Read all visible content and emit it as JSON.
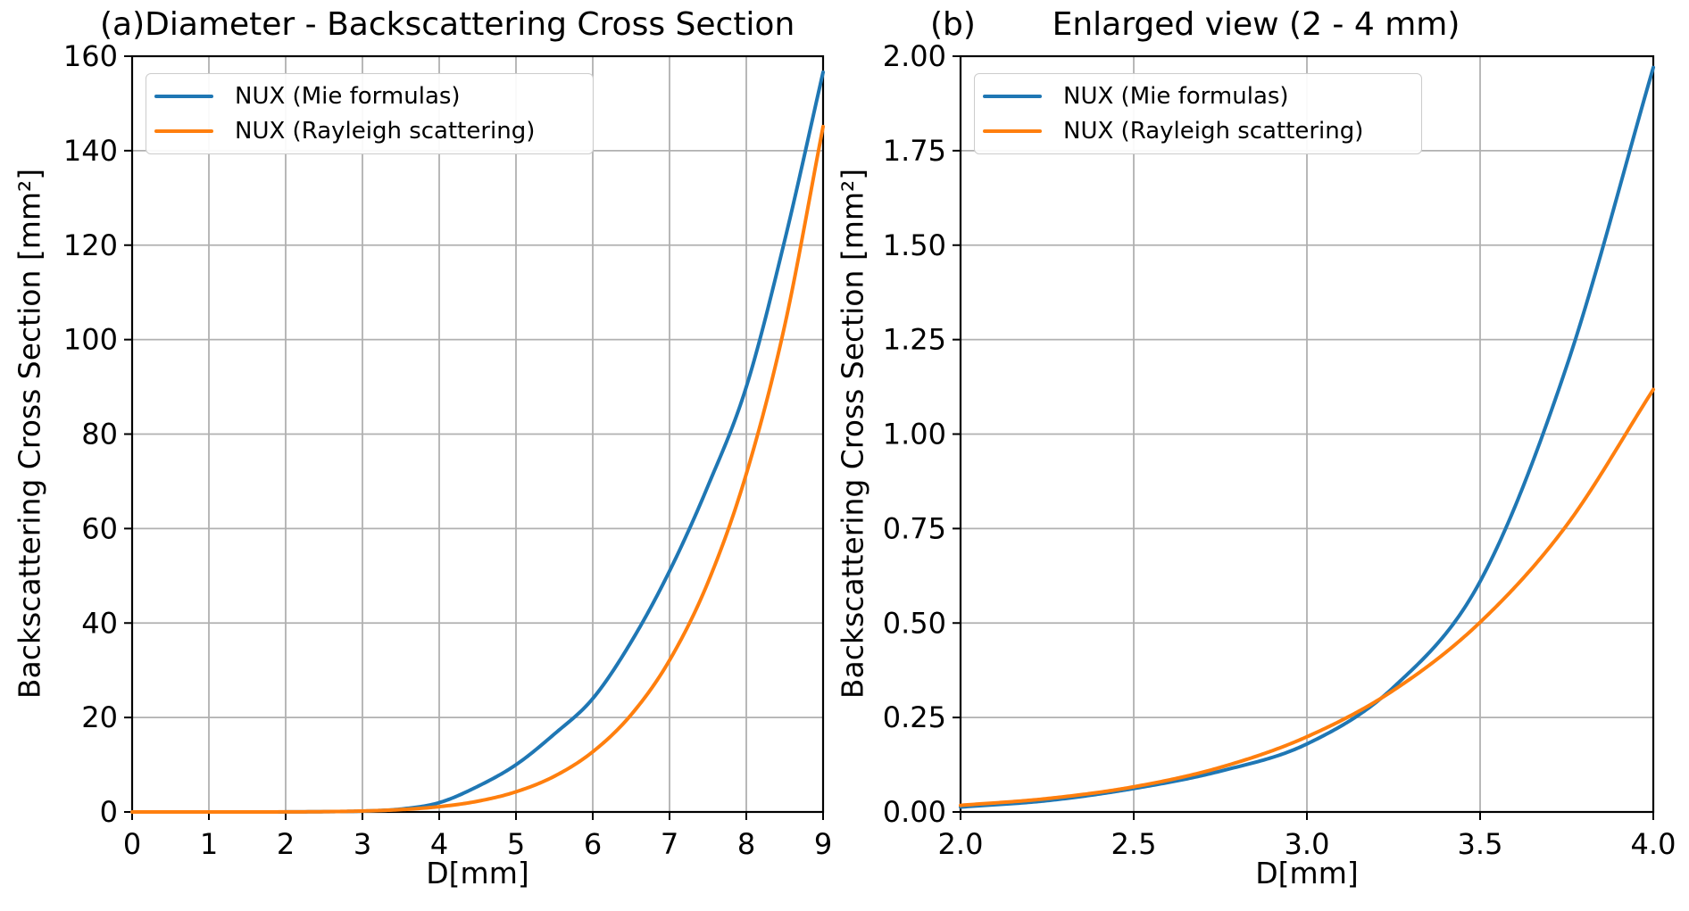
{
  "figure": {
    "background": "#ffffff",
    "grid_color": "#b0b0b0",
    "frame_color": "#000000",
    "legend_border_color": "#cccccc",
    "text_color": "#000000"
  },
  "chart_data": [
    {
      "type": "line",
      "corner_label": "(a)",
      "title": "Diameter - Backscattering Cross Section",
      "xlabel": "D[mm]",
      "ylabel": "Backscattering Cross Section [mm²]",
      "xlim": [
        0,
        9
      ],
      "ylim": [
        0,
        160
      ],
      "grid": true,
      "legend_position": "upper-left",
      "xtick_values": [
        0,
        1,
        2,
        3,
        4,
        5,
        6,
        7,
        8,
        9
      ],
      "xtick_labels": [
        "0",
        "1",
        "2",
        "3",
        "4",
        "5",
        "6",
        "7",
        "8",
        "9"
      ],
      "ytick_values": [
        0,
        20,
        40,
        60,
        80,
        100,
        120,
        140,
        160
      ],
      "ytick_labels": [
        "0",
        "20",
        "40",
        "60",
        "80",
        "100",
        "120",
        "140",
        "160"
      ],
      "series": [
        {
          "name": "NUX (Mie formulas)",
          "color": "#1f77b4",
          "x": [
            0,
            0.5,
            1,
            1.5,
            2,
            2.5,
            3,
            3.5,
            4,
            4.5,
            5,
            5.5,
            6,
            6.5,
            7,
            7.5,
            8,
            8.5,
            9
          ],
          "y": [
            0,
            1e-05,
            0.0002,
            0.002,
            0.013,
            0.062,
            0.18,
            0.61,
            1.97,
            5.4,
            10.0,
            16.5,
            24.0,
            36.0,
            51.0,
            69.0,
            90.0,
            121.0,
            156.6
          ]
        },
        {
          "name": "NUX (Rayleigh scattering)",
          "color": "#ff7f0e",
          "x": [
            0,
            0.5,
            1,
            1.5,
            2,
            2.5,
            3,
            3.5,
            4,
            4.5,
            5,
            5.5,
            6,
            6.5,
            7,
            7.5,
            8,
            8.5,
            9
          ],
          "y": [
            0,
            4.3e-06,
            0.00027,
            0.0031,
            0.0175,
            0.067,
            0.199,
            0.502,
            1.118,
            2.267,
            4.27,
            7.56,
            12.74,
            20.59,
            32.12,
            48.59,
            71.57,
            102.96,
            145.1
          ]
        }
      ]
    },
    {
      "type": "line",
      "corner_label": "(b)",
      "title": "Enlarged view (2 - 4 mm)",
      "xlabel": "D[mm]",
      "ylabel": "Backscattering Cross Section [mm²]",
      "xlim": [
        2,
        4
      ],
      "ylim": [
        0,
        2
      ],
      "grid": true,
      "legend_position": "upper-left",
      "xtick_values": [
        2.0,
        2.5,
        3.0,
        3.5,
        4.0
      ],
      "xtick_labels": [
        "2.0",
        "2.5",
        "3.0",
        "3.5",
        "4.0"
      ],
      "ytick_values": [
        0,
        0.25,
        0.5,
        0.75,
        1.0,
        1.25,
        1.5,
        1.75,
        2.0
      ],
      "ytick_labels": [
        "0.00",
        "0.25",
        "0.50",
        "0.75",
        "1.00",
        "1.25",
        "1.50",
        "1.75",
        "2.00"
      ],
      "series": [
        {
          "name": "NUX (Mie formulas)",
          "color": "#1f77b4",
          "x": [
            2,
            2.25,
            2.5,
            2.75,
            3,
            3.25,
            3.5,
            3.75,
            4
          ],
          "y": [
            0.013,
            0.03,
            0.062,
            0.108,
            0.18,
            0.33,
            0.61,
            1.18,
            1.97
          ]
        },
        {
          "name": "NUX (Rayleigh scattering)",
          "color": "#ff7f0e",
          "x": [
            2,
            2.25,
            2.5,
            2.75,
            3,
            3.25,
            3.5,
            3.75,
            4
          ],
          "y": [
            0.0175,
            0.0354,
            0.0666,
            0.118,
            0.199,
            0.322,
            0.502,
            0.759,
            1.118
          ]
        }
      ]
    }
  ]
}
